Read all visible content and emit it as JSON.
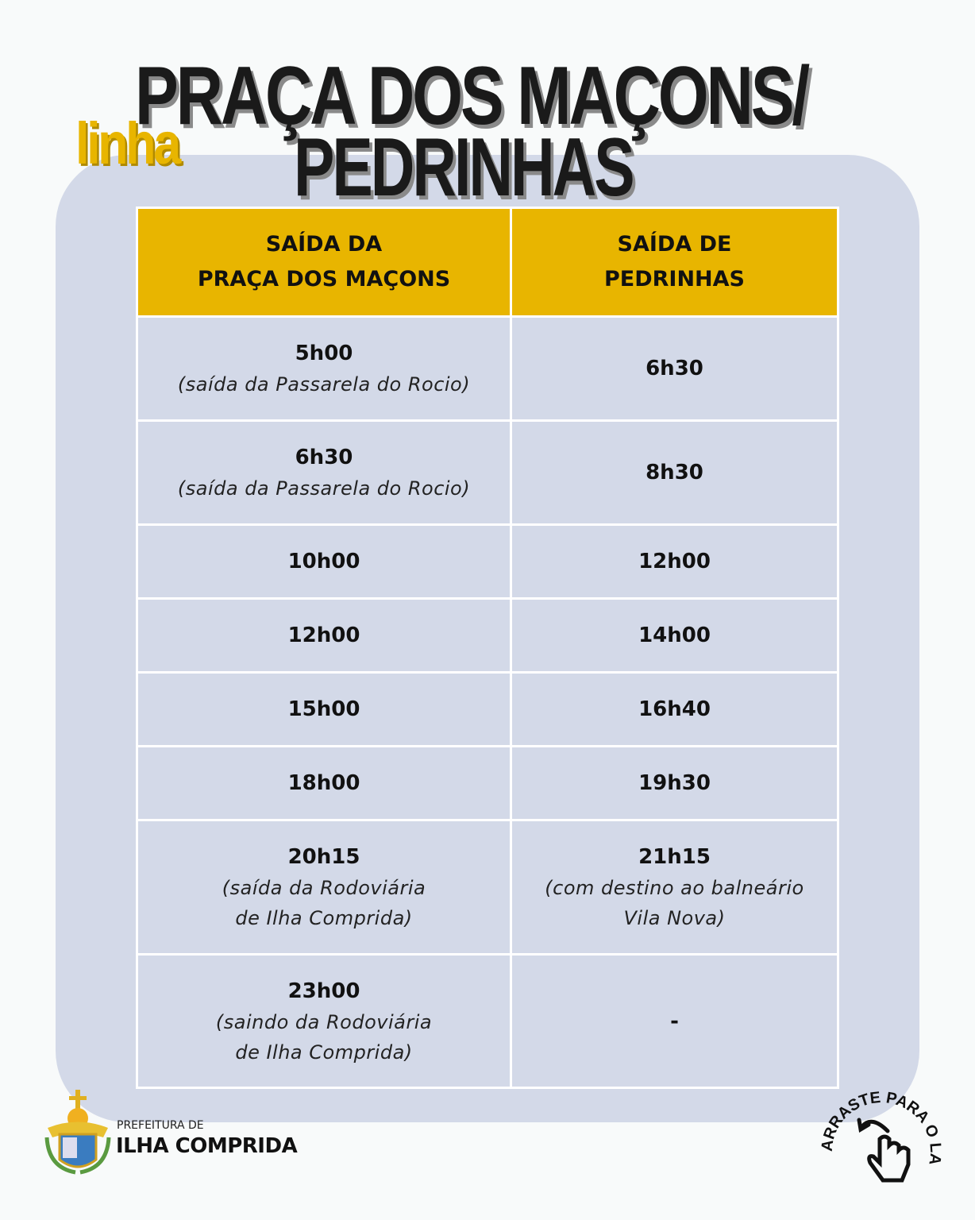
{
  "header": {
    "prefix": "linha",
    "title_line1": "PRAÇA DOS MAÇONS/",
    "title_line2": "PEDRINHAS"
  },
  "colors": {
    "accent": "#e8b500",
    "card": "#d3d9e8",
    "text": "#1a1a1a"
  },
  "table": {
    "columns": [
      "SAÍDA DA\nPRAÇA DOS MAÇONS",
      "SAÍDA DE\nPEDRINHAS"
    ],
    "rows": [
      [
        {
          "time": "5h00",
          "note": "(saída da Passarela do Rocio)"
        },
        {
          "time": "6h30"
        }
      ],
      [
        {
          "time": "6h30",
          "note": "(saída da Passarela do Rocio)"
        },
        {
          "time": "8h30"
        }
      ],
      [
        {
          "time": "10h00"
        },
        {
          "time": "12h00"
        }
      ],
      [
        {
          "time": "12h00"
        },
        {
          "time": "14h00"
        }
      ],
      [
        {
          "time": "15h00"
        },
        {
          "time": "16h40"
        }
      ],
      [
        {
          "time": "18h00"
        },
        {
          "time": "19h30"
        }
      ],
      [
        {
          "time": "20h15",
          "note": "(saída da Rodoviária\nde Ilha Comprida)"
        },
        {
          "time": "21h15",
          "note": "(com destino ao balneário\nVila Nova)"
        }
      ],
      [
        {
          "time": "23h00",
          "note": "(saindo da Rodoviária\nde Ilha Comprida)"
        },
        {
          "time": "-"
        }
      ]
    ]
  },
  "footer": {
    "org_small": "PREFEITURA DE",
    "org_big": "ILHA COMPRIDA",
    "logo_icon": "coat-of-arms",
    "swipe_text": "ARRASTE PARA O LADO",
    "swipe_icon": "hand-swipe-icon"
  }
}
